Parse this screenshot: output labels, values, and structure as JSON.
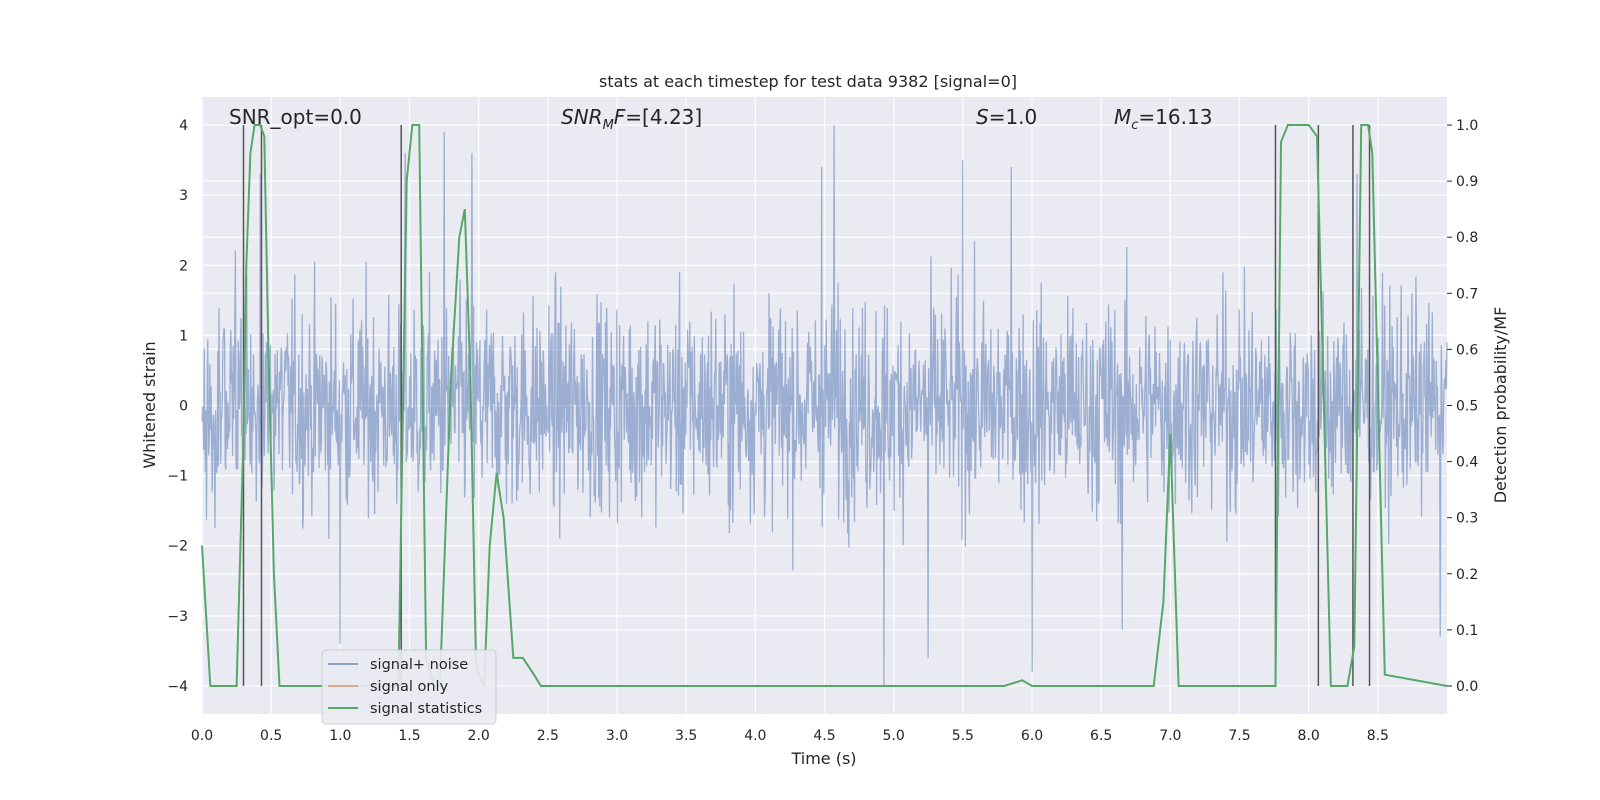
{
  "chart_data": {
    "type": "line",
    "title": "stats at each timestep for test data 9382 [signal=0]",
    "xlabel": "Time (s)",
    "ylabel": "Whitened strain",
    "ylabel_right": "Detection probability/MF",
    "xlim": [
      0.0,
      9.0
    ],
    "ylim": [
      -4.4,
      4.4
    ],
    "ylim_right": [
      -0.05,
      1.05
    ],
    "xticks": [
      "0.0",
      "0.5",
      "1.0",
      "1.5",
      "2.0",
      "2.5",
      "3.0",
      "3.5",
      "4.0",
      "4.5",
      "5.0",
      "5.5",
      "6.0",
      "6.5",
      "7.0",
      "7.5",
      "8.0",
      "8.5"
    ],
    "yticks_left": [
      "−4",
      "−3",
      "−2",
      "−1",
      "0",
      "1",
      "2",
      "3",
      "4"
    ],
    "yticks_right": [
      "0.0",
      "0.1",
      "0.2",
      "0.3",
      "0.4",
      "0.5",
      "0.6",
      "0.7",
      "0.8",
      "0.9",
      "1.0"
    ],
    "grid": true,
    "legend_position": "lower-left",
    "annotations": [
      {
        "text": "SNR_opt=0.0",
        "x": 0.2,
        "y": 4.05
      },
      {
        "text": "SNR_MF=[4.23]",
        "x": 2.6,
        "y": 4.05
      },
      {
        "text": "S=1.0",
        "x": 5.6,
        "y": 4.05
      },
      {
        "text": "M_c=16.13",
        "x": 6.6,
        "y": 4.05
      }
    ],
    "series": [
      {
        "name": "signal+ noise",
        "color": "#4c72b0",
        "note_hidden": false,
        "description_only": true,
        "spikes": [
          {
            "x": 0.42,
            "y": 3.3
          },
          {
            "x": 1.47,
            "y": 3.6
          },
          {
            "x": 1.75,
            "y": 3.9
          },
          {
            "x": 1.95,
            "y": 3.6
          },
          {
            "x": 4.57,
            "y": 4.0
          },
          {
            "x": 4.48,
            "y": 3.4
          },
          {
            "x": 5.5,
            "y": 3.5
          },
          {
            "x": 5.85,
            "y": 3.4
          },
          {
            "x": 8.35,
            "y": 3.3
          },
          {
            "x": 4.93,
            "y": -4.0
          },
          {
            "x": 6.0,
            "y": -3.8
          },
          {
            "x": 1.0,
            "y": -3.4
          },
          {
            "x": 5.25,
            "y": -3.6
          },
          {
            "x": 8.95,
            "y": -3.3
          },
          {
            "x": 6.65,
            "y": -3.2
          }
        ]
      },
      {
        "name": "signal only",
        "color": "#dd8452",
        "x": [],
        "y": []
      },
      {
        "name": "signal statistics",
        "color": "#55a868",
        "axis": "right",
        "x": [
          0.0,
          0.06,
          0.25,
          0.3,
          0.32,
          0.35,
          0.38,
          0.42,
          0.45,
          0.48,
          0.52,
          0.56,
          1.42,
          1.48,
          1.52,
          1.57,
          1.62,
          1.68,
          1.72,
          1.8,
          1.86,
          1.9,
          1.94,
          1.98,
          2.0,
          2.04,
          2.08,
          2.13,
          2.18,
          2.25,
          2.32,
          2.4,
          2.45,
          2.7,
          3.9,
          5.8,
          5.93,
          6.0,
          6.88,
          6.95,
          7.0,
          7.06,
          7.76,
          7.8,
          7.85,
          8.0,
          8.06,
          8.11,
          8.16,
          8.28,
          8.33,
          8.38,
          8.43,
          8.46,
          8.55,
          9.0
        ],
        "y": [
          0.25,
          0.0,
          0.0,
          0.45,
          0.75,
          0.95,
          1.0,
          1.0,
          0.98,
          0.6,
          0.2,
          0.0,
          0.0,
          0.9,
          1.0,
          1.0,
          0.05,
          0.0,
          0.0,
          0.55,
          0.8,
          0.85,
          0.55,
          0.05,
          0.02,
          0.0,
          0.25,
          0.38,
          0.3,
          0.05,
          0.05,
          0.02,
          0.0,
          0.0,
          0.0,
          0.0,
          0.01,
          0.0,
          0.0,
          0.15,
          0.45,
          0.0,
          0.0,
          0.97,
          1.0,
          1.0,
          0.98,
          0.5,
          0.0,
          0.0,
          0.07,
          1.0,
          1.0,
          0.95,
          0.02,
          0.0
        ]
      }
    ],
    "vertical_lines_x": [
      0.3,
      0.43,
      1.44,
      7.76,
      8.07,
      8.32,
      8.44
    ]
  }
}
